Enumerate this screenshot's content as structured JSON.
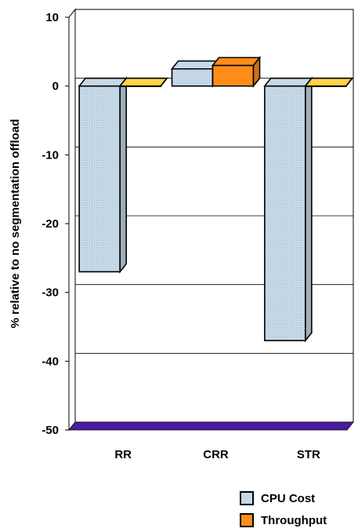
{
  "chart_data": {
    "type": "bar",
    "categories": [
      "RR",
      "CRR",
      "STR"
    ],
    "series": [
      {
        "name": "CPU Cost",
        "values": [
          -27,
          2.5,
          -37
        ],
        "color": "#c6d9e8"
      },
      {
        "name": "Throughput",
        "values": [
          0,
          3,
          0
        ],
        "color": "#ff8c1a"
      }
    ],
    "ylabel": "% relative to no segmentation offload",
    "ylim": [
      -50,
      10
    ],
    "yticks": [
      10,
      0,
      -10,
      -20,
      -30,
      -40,
      -50
    ],
    "grid": true,
    "floor_color": "#4b1c9e",
    "legend_position": "bottom-right"
  }
}
